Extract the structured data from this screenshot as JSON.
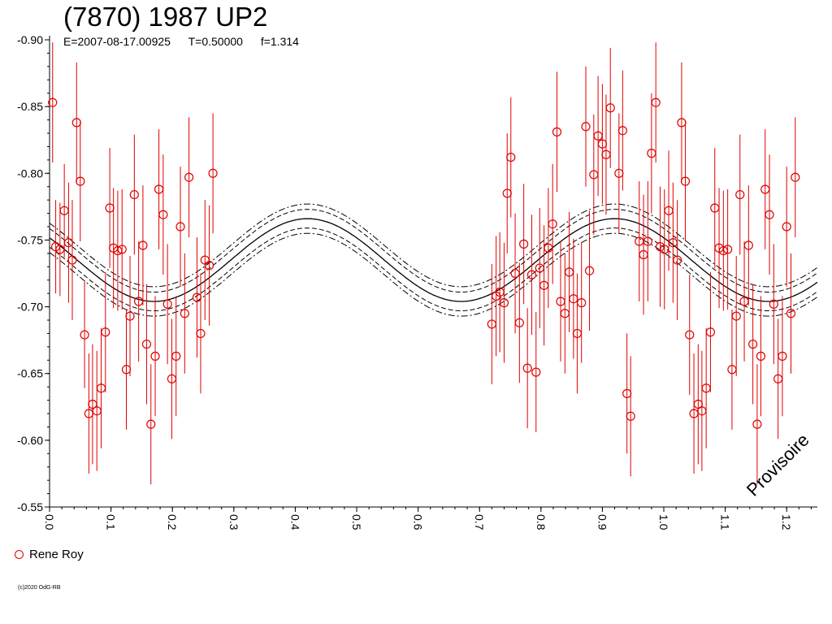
{
  "header": {
    "title": "(7870) 1987 UP2",
    "epoch": "E=2007-08-17.00925",
    "t_value": "T=0.50000",
    "f_value": "f=1.314"
  },
  "legend": {
    "label": "Rene Roy",
    "color": "#e00000"
  },
  "watermark": "Provisoire",
  "copyright": "(c)2020 OdG-RB",
  "chart_data": {
    "type": "scatter",
    "title": "(7870) 1987 UP2",
    "xlabel": "",
    "ylabel": "",
    "xlim": [
      0.0,
      1.25
    ],
    "ylim": [
      -0.9,
      -0.55
    ],
    "y_inverted_display": true,
    "grid": false,
    "legend_position": "bottom-left",
    "x_ticks": [
      "0.0",
      "0.1",
      "0.2",
      "0.3",
      "0.4",
      "0.5",
      "0.6",
      "0.7",
      "0.8",
      "0.9",
      "1.0",
      "1.1",
      "1.2"
    ],
    "y_ticks": [
      "-0.90",
      "-0.85",
      "-0.80",
      "-0.75",
      "-0.70",
      "-0.65",
      "-0.60",
      "-0.55"
    ],
    "fit": {
      "mean": -0.735,
      "amplitude": 0.031,
      "max_phase": 0.42,
      "band": 0.007,
      "band2": 0.011
    },
    "series": [
      {
        "name": "Rene Roy",
        "color": "#e00000",
        "points": [
          [
            0.005,
            -0.853,
            0.045
          ],
          [
            0.01,
            -0.745,
            0.035
          ],
          [
            0.017,
            -0.743,
            0.035
          ],
          [
            0.024,
            -0.772,
            0.035
          ],
          [
            0.031,
            -0.748,
            0.045
          ],
          [
            0.037,
            -0.735,
            0.045
          ],
          [
            0.044,
            -0.838,
            0.045
          ],
          [
            0.05,
            -0.794,
            0.045
          ],
          [
            0.057,
            -0.679,
            0.04
          ],
          [
            0.064,
            -0.62,
            0.045
          ],
          [
            0.07,
            -0.627,
            0.045
          ],
          [
            0.077,
            -0.622,
            0.045
          ],
          [
            0.084,
            -0.639,
            0.045
          ],
          [
            0.091,
            -0.681,
            0.045
          ],
          [
            0.098,
            -0.774,
            0.045
          ],
          [
            0.104,
            -0.744,
            0.045
          ],
          [
            0.111,
            -0.742,
            0.045
          ],
          [
            0.118,
            -0.743,
            0.045
          ],
          [
            0.125,
            -0.653,
            0.045
          ],
          [
            0.131,
            -0.693,
            0.045
          ],
          [
            0.138,
            -0.784,
            0.045
          ],
          [
            0.145,
            -0.704,
            0.045
          ],
          [
            0.152,
            -0.746,
            0.045
          ],
          [
            0.158,
            -0.672,
            0.045
          ],
          [
            0.165,
            -0.612,
            0.045
          ],
          [
            0.172,
            -0.663,
            0.045
          ],
          [
            0.178,
            -0.788,
            0.045
          ],
          [
            0.185,
            -0.769,
            0.045
          ],
          [
            0.192,
            -0.702,
            0.045
          ],
          [
            0.199,
            -0.646,
            0.045
          ],
          [
            0.206,
            -0.663,
            0.045
          ],
          [
            0.213,
            -0.76,
            0.045
          ],
          [
            0.22,
            -0.695,
            0.045
          ],
          [
            0.227,
            -0.797,
            0.045
          ],
          [
            0.24,
            -0.707,
            0.045
          ],
          [
            0.246,
            -0.68,
            0.045
          ],
          [
            0.253,
            -0.735,
            0.045
          ],
          [
            0.26,
            -0.731,
            0.045
          ],
          [
            0.266,
            -0.8,
            0.045
          ],
          [
            0.72,
            -0.687,
            0.045
          ],
          [
            0.727,
            -0.708,
            0.045
          ],
          [
            0.733,
            -0.711,
            0.045
          ],
          [
            0.74,
            -0.703,
            0.045
          ],
          [
            0.745,
            -0.785,
            0.045
          ],
          [
            0.751,
            -0.812,
            0.045
          ],
          [
            0.758,
            -0.725,
            0.045
          ],
          [
            0.765,
            -0.688,
            0.045
          ],
          [
            0.772,
            -0.747,
            0.045
          ],
          [
            0.778,
            -0.654,
            0.045
          ],
          [
            0.785,
            -0.724,
            0.045
          ],
          [
            0.792,
            -0.651,
            0.045
          ],
          [
            0.798,
            -0.729,
            0.045
          ],
          [
            0.805,
            -0.716,
            0.045
          ],
          [
            0.812,
            -0.744,
            0.045
          ],
          [
            0.819,
            -0.762,
            0.045
          ],
          [
            0.826,
            -0.831,
            0.045
          ],
          [
            0.832,
            -0.704,
            0.045
          ],
          [
            0.839,
            -0.695,
            0.045
          ],
          [
            0.846,
            -0.726,
            0.045
          ],
          [
            0.853,
            -0.706,
            0.045
          ],
          [
            0.859,
            -0.68,
            0.045
          ],
          [
            0.866,
            -0.703,
            0.045
          ],
          [
            0.873,
            -0.835,
            0.045
          ],
          [
            0.879,
            -0.727,
            0.045
          ],
          [
            0.886,
            -0.799,
            0.045
          ],
          [
            0.893,
            -0.828,
            0.045
          ],
          [
            0.9,
            -0.822,
            0.045
          ],
          [
            0.906,
            -0.814,
            0.045
          ],
          [
            0.913,
            -0.849,
            0.045
          ],
          [
            0.927,
            -0.8,
            0.045
          ],
          [
            0.933,
            -0.832,
            0.045
          ],
          [
            0.94,
            -0.635,
            0.045
          ],
          [
            0.946,
            -0.618,
            0.045
          ],
          [
            0.96,
            -0.749,
            0.045
          ],
          [
            0.967,
            -0.739,
            0.045
          ],
          [
            0.974,
            -0.749,
            0.045
          ],
          [
            0.98,
            -0.815,
            0.045
          ],
          [
            0.987,
            -0.853,
            0.045
          ],
          [
            0.994,
            -0.745,
            0.045
          ],
          [
            1.001,
            -0.743,
            0.045
          ],
          [
            1.008,
            -0.772,
            0.045
          ],
          [
            1.015,
            -0.748,
            0.045
          ],
          [
            1.022,
            -0.735,
            0.045
          ],
          [
            1.029,
            -0.838,
            0.045
          ],
          [
            1.035,
            -0.794,
            0.045
          ],
          [
            1.042,
            -0.679,
            0.045
          ],
          [
            1.049,
            -0.62,
            0.045
          ],
          [
            1.056,
            -0.627,
            0.045
          ],
          [
            1.062,
            -0.622,
            0.045
          ],
          [
            1.069,
            -0.639,
            0.045
          ],
          [
            1.076,
            -0.681,
            0.045
          ],
          [
            1.083,
            -0.774,
            0.045
          ],
          [
            1.09,
            -0.744,
            0.045
          ],
          [
            1.097,
            -0.742,
            0.045
          ],
          [
            1.104,
            -0.743,
            0.045
          ],
          [
            1.111,
            -0.653,
            0.045
          ],
          [
            1.118,
            -0.693,
            0.045
          ],
          [
            1.124,
            -0.784,
            0.045
          ],
          [
            1.131,
            -0.704,
            0.045
          ],
          [
            1.138,
            -0.746,
            0.045
          ],
          [
            1.145,
            -0.672,
            0.045
          ],
          [
            1.152,
            -0.612,
            0.045
          ],
          [
            1.158,
            -0.663,
            0.045
          ],
          [
            1.165,
            -0.788,
            0.045
          ],
          [
            1.172,
            -0.769,
            0.045
          ],
          [
            1.179,
            -0.702,
            0.045
          ],
          [
            1.186,
            -0.646,
            0.045
          ],
          [
            1.193,
            -0.663,
            0.045
          ],
          [
            1.2,
            -0.76,
            0.045
          ],
          [
            1.207,
            -0.695,
            0.045
          ],
          [
            1.214,
            -0.797,
            0.045
          ]
        ]
      }
    ]
  }
}
